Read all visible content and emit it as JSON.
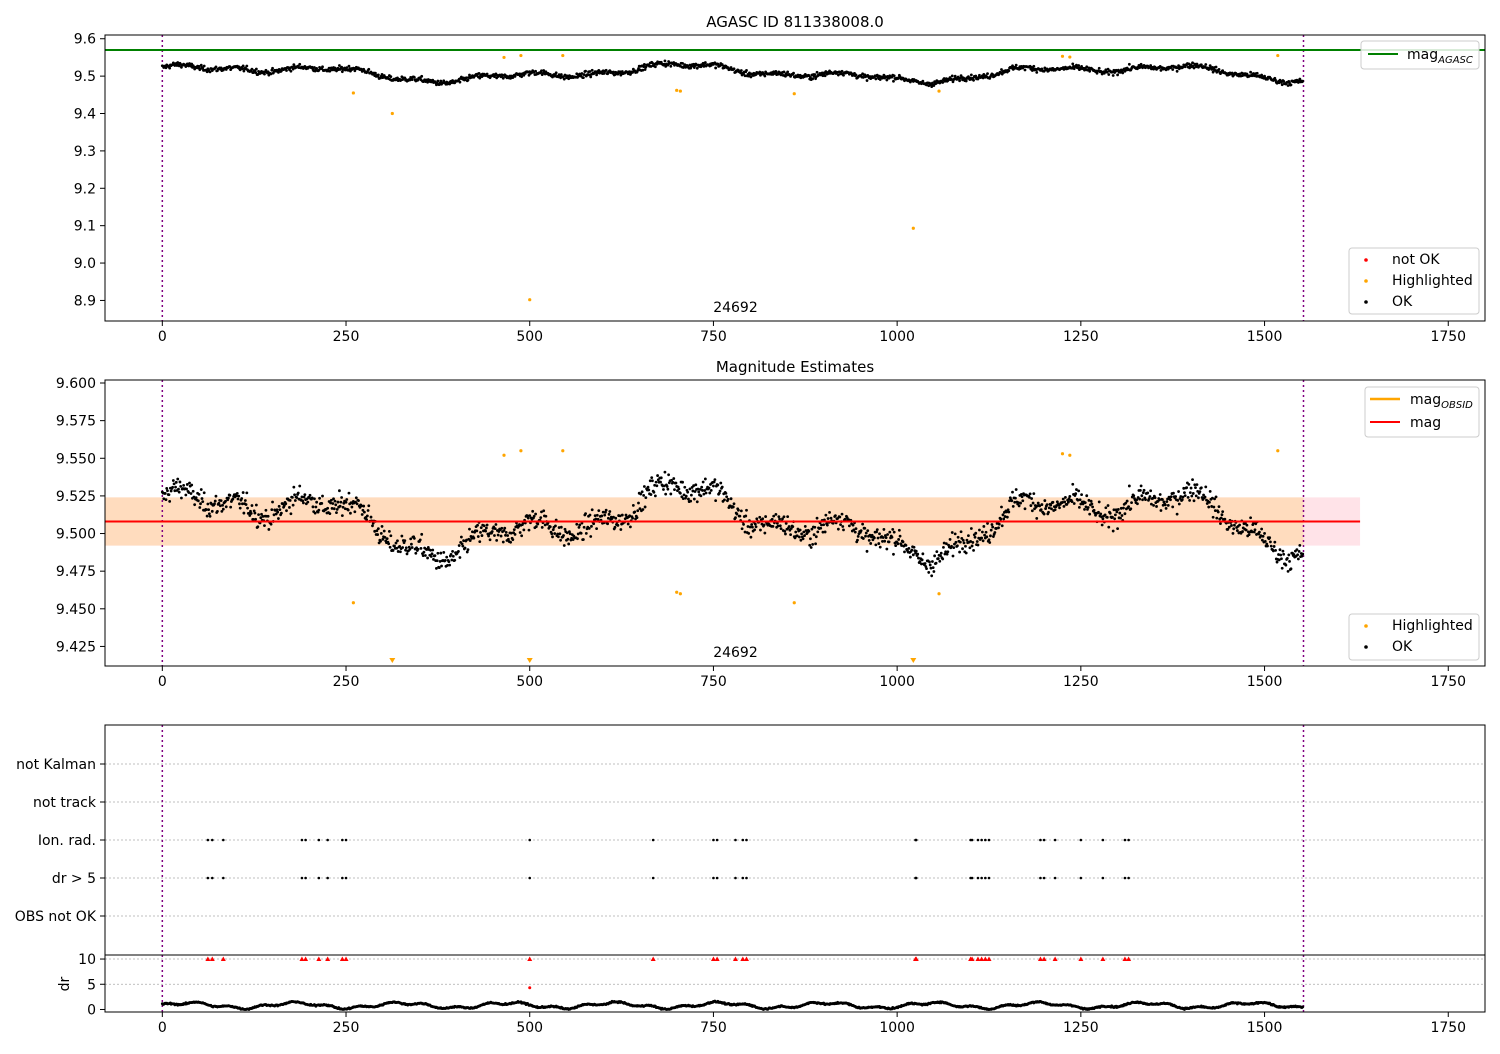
{
  "chart_data": [
    {
      "type": "scatter",
      "title": "AGASC ID 811338008.0",
      "annotation": "24692",
      "xlim": [
        -78,
        1800
      ],
      "ylim": [
        8.845,
        9.61
      ],
      "xticks": [
        0,
        250,
        500,
        750,
        1000,
        1250,
        1500,
        1750
      ],
      "yticks": [
        8.9,
        9.0,
        9.1,
        9.2,
        9.3,
        9.4,
        9.5,
        9.6
      ],
      "ytick_labels": [
        "8.9",
        "9.0",
        "9.1",
        "9.2",
        "9.3",
        "9.4",
        "9.5",
        "9.6"
      ],
      "vlines": [
        0,
        1553
      ],
      "hline": {
        "label": "mag",
        "label_sub": "AGASC",
        "y": 9.57,
        "color": "#008000"
      },
      "series_ok": {
        "name": "OK",
        "color": "#000000",
        "n": 1553,
        "base": 9.508,
        "variation": 0.02
      },
      "highlighted": {
        "name": "Highlighted",
        "color": "#ffa500",
        "points": [
          [
            260,
            9.455
          ],
          [
            313,
            9.4
          ],
          [
            500,
            8.902
          ],
          [
            465,
            9.55
          ],
          [
            488,
            9.555
          ],
          [
            545,
            9.555
          ],
          [
            700,
            9.462
          ],
          [
            705,
            9.46
          ],
          [
            860,
            9.453
          ],
          [
            1022,
            9.093
          ],
          [
            1057,
            9.46
          ],
          [
            1225,
            9.553
          ],
          [
            1235,
            9.551
          ],
          [
            1518,
            9.555
          ]
        ]
      },
      "not_ok": {
        "name": "not OK",
        "color": "#ff0000"
      },
      "legend_upper": [
        "mag_AGASC"
      ],
      "legend_lower": [
        "not OK",
        "Highlighted",
        "OK"
      ]
    },
    {
      "type": "scatter",
      "title": "Magnitude Estimates",
      "annotation": "24692",
      "xlim": [
        -78,
        1800
      ],
      "ylim": [
        9.412,
        9.602
      ],
      "xticks": [
        0,
        250,
        500,
        750,
        1000,
        1250,
        1500,
        1750
      ],
      "yticks": [
        9.425,
        9.45,
        9.475,
        9.5,
        9.525,
        9.55,
        9.575,
        9.6
      ],
      "ytick_labels": [
        "9.425",
        "9.450",
        "9.475",
        "9.500",
        "9.525",
        "9.550",
        "9.575",
        "9.600"
      ],
      "vlines": [
        0,
        1553
      ],
      "mag": {
        "label": "mag",
        "y": 9.508,
        "color": "#ff0000",
        "band": [
          9.492,
          9.524
        ],
        "band_color": "#ffc0cb",
        "x_end": 1630
      },
      "mag_obsid": {
        "label": "mag",
        "label_sub": "OBSID",
        "y": 9.508,
        "color": "#ffa500",
        "band": [
          9.492,
          9.524
        ],
        "band_color": "#ffdab9",
        "x_end": 1553
      },
      "highlighted": {
        "name": "Highlighted",
        "color": "#ffa500",
        "points": [
          [
            260,
            9.454
          ],
          [
            465,
            9.552
          ],
          [
            488,
            9.555
          ],
          [
            545,
            9.555
          ],
          [
            700,
            9.461
          ],
          [
            705,
            9.46
          ],
          [
            860,
            9.454
          ],
          [
            1057,
            9.46
          ],
          [
            1225,
            9.553
          ],
          [
            1235,
            9.552
          ],
          [
            1518,
            9.555
          ]
        ],
        "offscale_markers": [
          313,
          500,
          1022
        ]
      },
      "legend_upper": [
        "mag_OBSID",
        "mag"
      ],
      "legend_lower": [
        "Highlighted",
        "OK"
      ]
    },
    {
      "type": "scatter",
      "title": "",
      "xlim": [
        -78,
        1800
      ],
      "xticks": [
        0,
        250,
        500,
        750,
        1000,
        1250,
        1500,
        1750
      ],
      "vlines": [
        0,
        1553
      ],
      "categories": [
        "not Kalman",
        "not track",
        "Ion. rad.",
        "dr > 5",
        "OBS not OK"
      ],
      "flag_times": [
        62,
        68,
        83,
        190,
        195,
        213,
        225,
        245,
        250,
        500,
        668,
        750,
        755,
        780,
        790,
        795,
        1025,
        1026,
        1100,
        1102,
        1110,
        1115,
        1120,
        1125,
        1195,
        1200,
        1215,
        1250,
        1280,
        1310,
        1315
      ],
      "flag_rows": [
        "Ion. rad.",
        "dr > 5"
      ],
      "dr_panel": {
        "ylabel": "dr",
        "yticks": [
          0,
          5,
          10
        ],
        "ylim": [
          -0.5,
          10.8
        ],
        "clipped_value": 10,
        "clipped_times": [
          62,
          68,
          83,
          190,
          195,
          213,
          225,
          245,
          250,
          500,
          668,
          750,
          755,
          780,
          790,
          795,
          1025,
          1026,
          1100,
          1102,
          1110,
          1115,
          1120,
          1125,
          1195,
          1200,
          1215,
          1250,
          1280,
          1310,
          1315
        ],
        "extra_points": [
          [
            500,
            4.3
          ]
        ],
        "base": 0.8,
        "clipped_color": "#ff0000"
      }
    }
  ]
}
